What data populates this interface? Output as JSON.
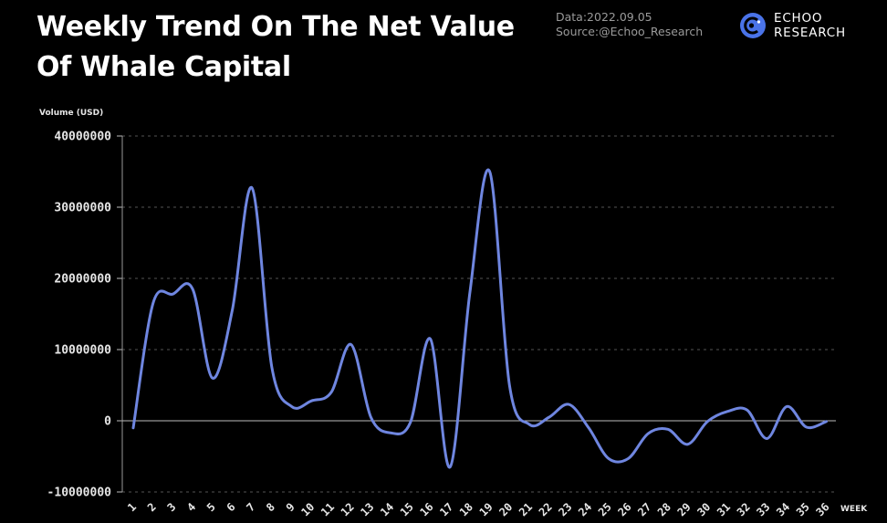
{
  "header": {
    "title": "Weekly Trend On The Net Value Of Whale Capital",
    "data_date": "Data:2022.09.05",
    "source": "Source:@Echoo_Research",
    "logo_line1": "ECHOO",
    "logo_line2": "RESEARCH",
    "logo_icon": "echoo-logo-icon"
  },
  "colors": {
    "background": "#000000",
    "line": "#6f86e0",
    "grid": "#555555",
    "logo": "#4a73e8"
  },
  "chart_data": {
    "type": "line",
    "title": "Weekly Trend On The Net Value Of Whale Capital",
    "xlabel": "WEEK",
    "ylabel": "Volume (USD)",
    "ylim": [
      -10000000,
      40000000
    ],
    "yticks": [
      -10000000,
      0,
      10000000,
      20000000,
      30000000,
      40000000
    ],
    "ytick_labels": [
      "-10000000",
      "0",
      "10000000",
      "20000000",
      "30000000",
      "40000000"
    ],
    "grid": "horizontal dashed",
    "legend": "none",
    "categories": [
      "1",
      "2",
      "3",
      "4",
      "5",
      "6",
      "7",
      "8",
      "9",
      "10",
      "11",
      "12",
      "13",
      "14",
      "15",
      "16",
      "17",
      "18",
      "19",
      "20",
      "21",
      "22",
      "23",
      "24",
      "25",
      "26",
      "27",
      "28",
      "29",
      "30",
      "31",
      "32",
      "33",
      "34",
      "35",
      "36"
    ],
    "series": [
      {
        "values": [
          -1000000,
          16500000,
          17800000,
          18500000,
          6000000,
          15500000,
          32700000,
          7500000,
          2000000,
          2800000,
          4000000,
          10700000,
          500000,
          -1700000,
          -200000,
          11500000,
          -6500000,
          18000000,
          35000000,
          5000000,
          -500000,
          500000,
          2300000,
          -1000000,
          -5300000,
          -5300000,
          -1800000,
          -1200000,
          -3300000,
          -100000,
          1300000,
          1500000,
          -2500000,
          2000000,
          -900000,
          -100000
        ]
      }
    ]
  }
}
